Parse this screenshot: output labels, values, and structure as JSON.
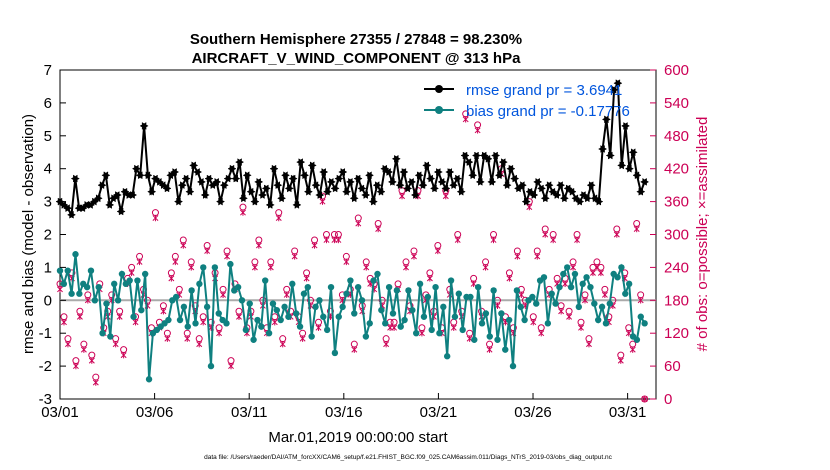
{
  "chart_data": {
    "type": "line",
    "title_line1": "Southern Hemisphere 27355 / 27848 = 98.230%",
    "title_line2": "AIRCRAFT_V_WIND_COMPONENT @ 313 hPa",
    "xlabel": "Mar.01,2019 00:00:00 start",
    "ylabel": "rmse and bias (model - observation)",
    "ylabel_right": "# of obs: o=possible; ×=assimilated",
    "xlim": [
      0,
      31.5
    ],
    "ylim": [
      -3,
      7
    ],
    "ylim_right": [
      0,
      600
    ],
    "x_ticks": [
      0,
      5,
      10,
      15,
      20,
      25,
      30
    ],
    "x_tick_labels": [
      "03/01",
      "03/06",
      "03/11",
      "03/16",
      "03/21",
      "03/26",
      "03/31"
    ],
    "y_ticks": [
      "-3",
      "-2",
      "-1",
      "0",
      "1",
      "2",
      "3",
      "4",
      "5",
      "6",
      "7"
    ],
    "y_ticks_right": [
      "0",
      "60",
      "120",
      "180",
      "240",
      "300",
      "360",
      "420",
      "480",
      "540",
      "600"
    ],
    "footnote": "data file: /Users/raeder/DAI/ATM_forcXX/CAM6_setup/f.e21.FHIST_BGC.f09_025.CAM6assim.011/Diags_NTrS_2019-03/obs_diag_output.nc",
    "legend": [
      {
        "label": "rmse grand pr = 3.6941",
        "color": "#000000"
      },
      {
        "label": "bias grand pr = -0.17776",
        "color": "#0f8080"
      }
    ],
    "series": [
      {
        "name": "rmse",
        "color": "#000000",
        "values": [
          3.0,
          2.9,
          2.8,
          2.6,
          3.7,
          2.8,
          2.8,
          2.9,
          2.9,
          3.0,
          3.1,
          3.5,
          3.8,
          2.9,
          3.1,
          3.2,
          2.7,
          3.3,
          3.2,
          3.2,
          4.0,
          3.8,
          5.3,
          3.8,
          3.3,
          3.7,
          3.6,
          3.5,
          3.4,
          3.8,
          3.9,
          3.0,
          3.5,
          3.7,
          3.3,
          4.1,
          3.9,
          3.6,
          3.2,
          3.7,
          3.5,
          3.6,
          3.0,
          3.5,
          3.7,
          4.0,
          3.7,
          4.2,
          3.1,
          3.8,
          3.3,
          3.0,
          3.6,
          3.2,
          3.4,
          2.9,
          4.0,
          3.5,
          3.1,
          3.8,
          3.4,
          3.7,
          2.9,
          4.2,
          3.8,
          3.3,
          4.1,
          3.5,
          3.2,
          3.9,
          3.3,
          3.6,
          3.4,
          3.7,
          3.9,
          3.3,
          3.6,
          3.1,
          3.7,
          3.4,
          3.2,
          3.8,
          3.0,
          3.5,
          3.3,
          4.0,
          3.9,
          3.6,
          4.3,
          3.5,
          3.9,
          3.4,
          3.6,
          3.2,
          3.8,
          3.5,
          4.1,
          3.7,
          3.4,
          3.9,
          3.6,
          3.4,
          3.9,
          3.5,
          3.7,
          3.3,
          4.4,
          4.2,
          3.8,
          4.4,
          3.6,
          4.4,
          4.3,
          3.6,
          4.4,
          3.8,
          4.2,
          3.5,
          4.0,
          3.7,
          3.4,
          3.5,
          3.0,
          3.3,
          3.2,
          3.6,
          3.4,
          3.1,
          3.5,
          3.3,
          3.2,
          3.5,
          3.1,
          3.4,
          3.3,
          3.1,
          3.0,
          3.2,
          3.1,
          3.5,
          3.1,
          3.0,
          4.6,
          5.5,
          4.4,
          6.4,
          6.6,
          4.1,
          5.3,
          4.0,
          4.5,
          3.8,
          3.3,
          3.6
        ]
      },
      {
        "name": "bias",
        "color": "#0f8080",
        "values": [
          0.9,
          0.5,
          0.9,
          0.2,
          1.4,
          0.2,
          0.5,
          0.4,
          0.9,
          0.0,
          0.4,
          -1.0,
          -0.1,
          -1.1,
          0.5,
          0.0,
          0.8,
          0.5,
          0.6,
          -0.5,
          0.6,
          -0.3,
          0.8,
          -2.4,
          -1.0,
          -0.9,
          -0.8,
          -0.7,
          -0.6,
          0.0,
          0.1,
          -0.6,
          -0.2,
          -0.8,
          0.3,
          -0.7,
          0.5,
          1.0,
          -0.2,
          -2.0,
          1.0,
          -0.4,
          -0.6,
          -0.7,
          1.1,
          0.3,
          0.4,
          0.0,
          -0.9,
          -0.1,
          -1.2,
          -0.6,
          -0.8,
          0.6,
          -1.0,
          -0.1,
          -0.3,
          -0.6,
          -0.2,
          -0.5,
          0.5,
          -0.4,
          -0.8,
          0.2,
          0.4,
          -1.1,
          -0.2,
          0.0,
          -0.5,
          -0.9,
          0.4,
          -1.6,
          -0.5,
          -0.2,
          0.2,
          0.6,
          -0.4,
          0.4,
          0.0,
          -1.1,
          -0.7,
          0.6,
          0.8,
          -0.3,
          -0.7,
          0.4,
          -0.4,
          0.3,
          -0.8,
          -0.6,
          0.3,
          -0.3,
          -1.0,
          0.5,
          -0.5,
          0.1,
          -0.9,
          0.4,
          -1.0,
          -0.2,
          -1.7,
          0.6,
          -0.5,
          0.2,
          -0.9,
          0.1,
          0.1,
          -1.2,
          0.4,
          -0.7,
          -0.4,
          -1.1,
          0.3,
          -1.2,
          -0.4,
          -1.5,
          -0.6,
          -2.0,
          0.3,
          -0.2,
          -0.6,
          0.0,
          0.1,
          -0.1,
          0.6,
          0.7,
          -0.7,
          0.2,
          -0.1,
          0.4,
          0.8,
          1.0,
          0.4,
          0.8,
          -0.2,
          0.5,
          0.7,
          0.4,
          -0.1,
          -0.6,
          -0.2,
          -0.7,
          -0.1,
          0.8,
          0.7,
          1.0,
          0.2,
          0.5,
          -1.1,
          -1.2,
          -0.5,
          -0.7
        ]
      },
      {
        "name": "possible_obs",
        "axis": "right",
        "color": "#cc0055",
        "marker": "o",
        "values": [
          210,
          150,
          110,
          230,
          70,
          160,
          100,
          190,
          80,
          40,
          210,
          130,
          160,
          190,
          110,
          160,
          90,
          220,
          240,
          150,
          260,
          200,
          180,
          130,
          340,
          140,
          170,
          120,
          230,
          260,
          200,
          290,
          120,
          250,
          170,
          110,
          150,
          280,
          140,
          230,
          130,
          200,
          270,
          70,
          210,
          160,
          350,
          130,
          160,
          250,
          290,
          180,
          130,
          250,
          150,
          340,
          110,
          200,
          160,
          270,
          150,
          120,
          230,
          180,
          290,
          140,
          370,
          300,
          160,
          300,
          300,
          190,
          260,
          200,
          100,
          330,
          170,
          250,
          220,
          210,
          320,
          180,
          110,
          140,
          140,
          210,
          380,
          250,
          170,
          270,
          380,
          130,
          190,
          230,
          160,
          280,
          130,
          380,
          200,
          140,
          300,
          160,
          520,
          120,
          220,
          500,
          160,
          250,
          100,
          300,
          180,
          420,
          150,
          230,
          130,
          270,
          200,
          180,
          360,
          150,
          270,
          130,
          310,
          200,
          300,
          220,
          170,
          220,
          160,
          250,
          300,
          140,
          190,
          110,
          240,
          250,
          240,
          200,
          150,
          180,
          310,
          80,
          230,
          130,
          100,
          320,
          190,
          0
        ]
      },
      {
        "name": "assimilated_obs",
        "axis": "right",
        "color": "#cc0055",
        "marker": "x",
        "values": [
          200,
          140,
          100,
          220,
          60,
          150,
          90,
          180,
          70,
          30,
          200,
          120,
          150,
          180,
          100,
          150,
          80,
          210,
          230,
          140,
          250,
          190,
          170,
          120,
          330,
          130,
          160,
          110,
          220,
          250,
          190,
          280,
          110,
          240,
          160,
          100,
          140,
          270,
          130,
          220,
          120,
          190,
          260,
          60,
          200,
          150,
          340,
          120,
          150,
          240,
          280,
          170,
          120,
          240,
          140,
          330,
          100,
          190,
          150,
          260,
          140,
          110,
          220,
          170,
          280,
          130,
          360,
          290,
          150,
          290,
          290,
          180,
          250,
          190,
          90,
          320,
          160,
          240,
          210,
          200,
          310,
          170,
          100,
          130,
          130,
          200,
          370,
          240,
          160,
          260,
          370,
          120,
          180,
          220,
          150,
          270,
          120,
          370,
          190,
          130,
          290,
          150,
          510,
          110,
          210,
          490,
          150,
          240,
          90,
          290,
          170,
          410,
          140,
          220,
          120,
          260,
          190,
          170,
          350,
          140,
          260,
          120,
          300,
          190,
          290,
          210,
          160,
          210,
          150,
          240,
          290,
          130,
          180,
          100,
          230,
          240,
          230,
          190,
          140,
          170,
          300,
          70,
          220,
          120,
          90,
          310,
          180,
          0
        ]
      }
    ]
  }
}
